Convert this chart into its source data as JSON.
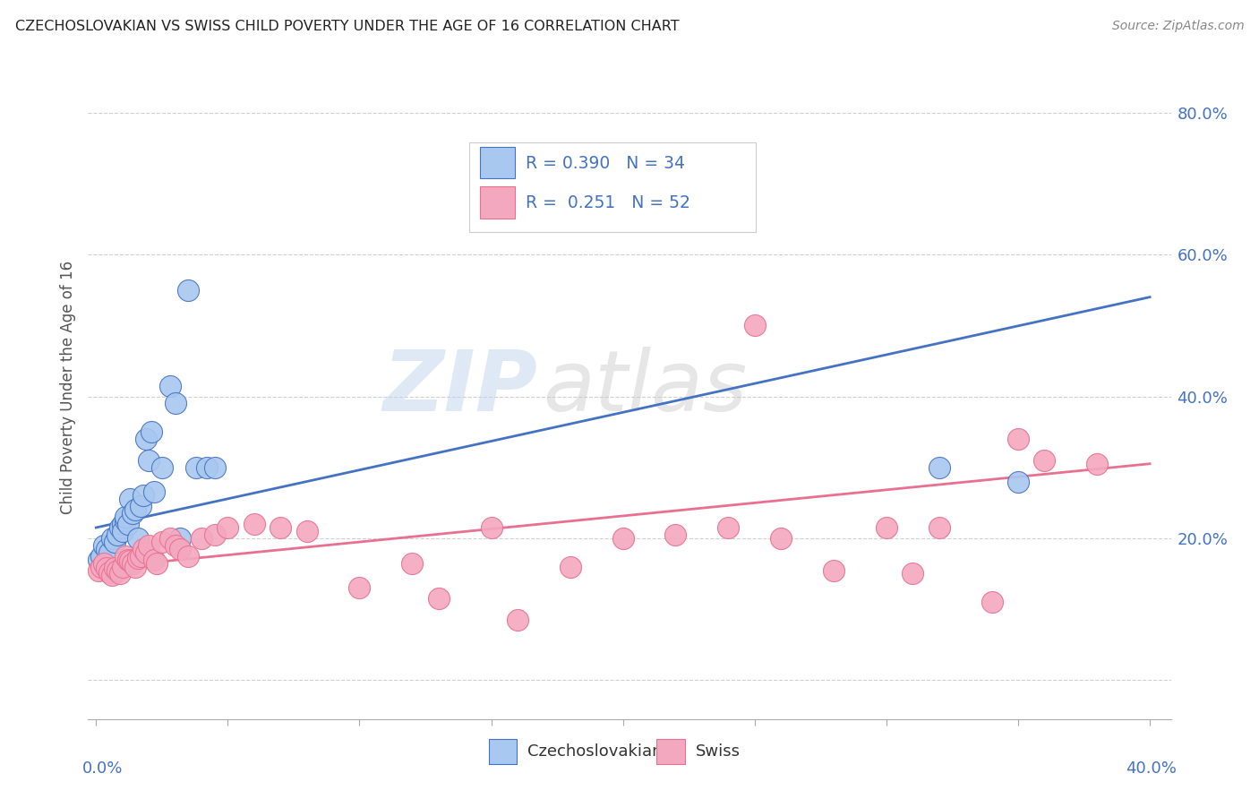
{
  "title": "CZECHOSLOVAKIAN VS SWISS CHILD POVERTY UNDER THE AGE OF 16 CORRELATION CHART",
  "source": "Source: ZipAtlas.com",
  "ylabel": "Child Poverty Under the Age of 16",
  "legend_label1": "Czechoslovakians",
  "legend_label2": "Swiss",
  "color_czech": "#a8c8f0",
  "color_swiss": "#f4a8c0",
  "color_line_czech": "#4472c4",
  "color_line_swiss": "#e87090",
  "color_axis_labels": "#4472c4",
  "czech_x": [
    0.001,
    0.002,
    0.003,
    0.004,
    0.005,
    0.006,
    0.007,
    0.008,
    0.009,
    0.01,
    0.01,
    0.011,
    0.011,
    0.012,
    0.013,
    0.014,
    0.015,
    0.016,
    0.017,
    0.018,
    0.019,
    0.02,
    0.021,
    0.022,
    0.025,
    0.028,
    0.03,
    0.032,
    0.035,
    0.038,
    0.042,
    0.045,
    0.32,
    0.35
  ],
  "czech_y": [
    0.17,
    0.175,
    0.19,
    0.185,
    0.18,
    0.2,
    0.195,
    0.205,
    0.215,
    0.22,
    0.21,
    0.225,
    0.23,
    0.22,
    0.255,
    0.235,
    0.24,
    0.2,
    0.245,
    0.26,
    0.34,
    0.31,
    0.35,
    0.265,
    0.3,
    0.415,
    0.39,
    0.2,
    0.55,
    0.3,
    0.3,
    0.3,
    0.3,
    0.28
  ],
  "swiss_x": [
    0.001,
    0.002,
    0.003,
    0.004,
    0.005,
    0.006,
    0.007,
    0.008,
    0.009,
    0.01,
    0.011,
    0.012,
    0.013,
    0.014,
    0.015,
    0.016,
    0.017,
    0.018,
    0.019,
    0.02,
    0.022,
    0.023,
    0.025,
    0.028,
    0.03,
    0.032,
    0.035,
    0.04,
    0.045,
    0.05,
    0.06,
    0.07,
    0.08,
    0.1,
    0.12,
    0.13,
    0.15,
    0.16,
    0.18,
    0.2,
    0.22,
    0.24,
    0.25,
    0.26,
    0.28,
    0.3,
    0.31,
    0.32,
    0.34,
    0.35,
    0.36,
    0.38
  ],
  "swiss_y": [
    0.155,
    0.16,
    0.165,
    0.158,
    0.152,
    0.148,
    0.158,
    0.155,
    0.15,
    0.16,
    0.175,
    0.17,
    0.168,
    0.165,
    0.16,
    0.172,
    0.175,
    0.185,
    0.18,
    0.19,
    0.17,
    0.165,
    0.195,
    0.2,
    0.19,
    0.185,
    0.175,
    0.2,
    0.205,
    0.215,
    0.22,
    0.215,
    0.21,
    0.13,
    0.165,
    0.115,
    0.215,
    0.085,
    0.16,
    0.2,
    0.205,
    0.215,
    0.5,
    0.2,
    0.155,
    0.215,
    0.15,
    0.215,
    0.11,
    0.34,
    0.31,
    0.305
  ],
  "czech_line_x0": 0.0,
  "czech_line_y0": 0.215,
  "czech_line_x1": 0.4,
  "czech_line_y1": 0.54,
  "swiss_line_x0": 0.0,
  "swiss_line_y0": 0.158,
  "swiss_line_x1": 0.4,
  "swiss_line_y1": 0.305,
  "xlim_min": -0.003,
  "xlim_max": 0.408,
  "ylim_min": -0.055,
  "ylim_max": 0.88
}
